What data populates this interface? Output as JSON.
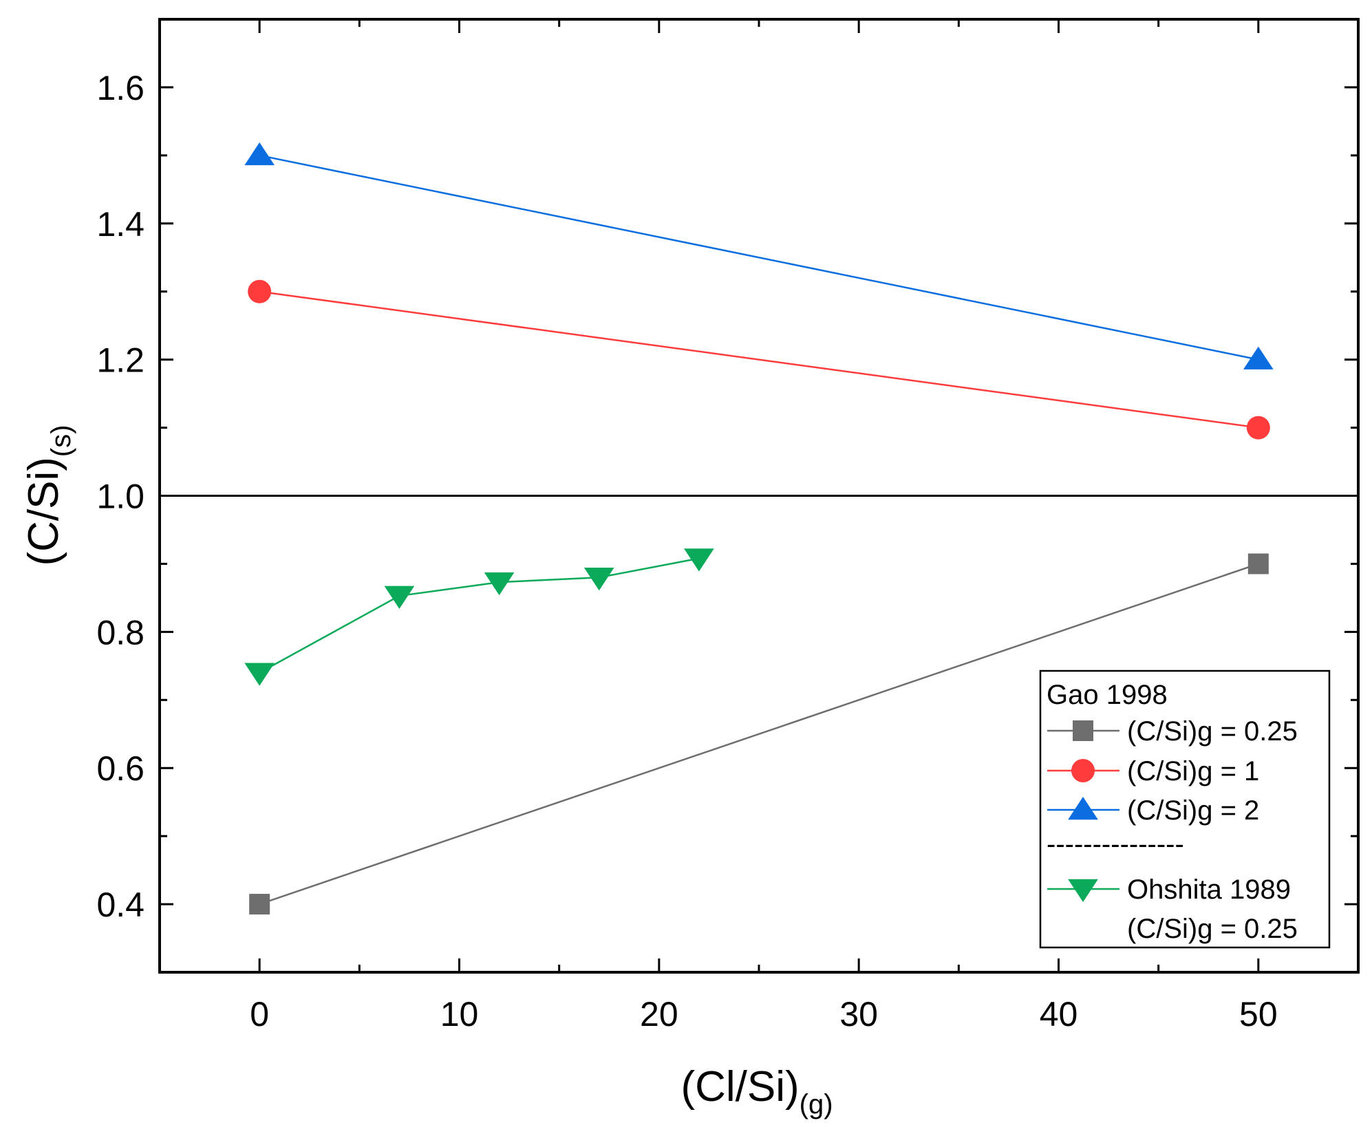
{
  "chart_data": {
    "type": "line",
    "title": "",
    "xlabel": "(Cl/Si)",
    "xlabel_sub": "(g)",
    "ylabel": "(C/Si)",
    "ylabel_sub": "(s)",
    "xlim": [
      -5,
      55
    ],
    "ylim": [
      0.3,
      1.7
    ],
    "xticks": [
      0,
      10,
      20,
      30,
      40,
      50
    ],
    "xtick_labels": [
      "0",
      "10",
      "20",
      "30",
      "40",
      "50"
    ],
    "yticks": [
      0.4,
      0.6,
      0.8,
      1.0,
      1.2,
      1.4,
      1.6
    ],
    "ytick_labels": [
      "0.4",
      "0.6",
      "0.8",
      "1.0",
      "1.2",
      "1.4",
      "1.6"
    ],
    "reference_line_y": 1.0,
    "grid": false,
    "series": [
      {
        "name": "(C/Si)g = 0.25",
        "group": "Gao 1998",
        "color": "#6e6e6e",
        "marker": "square",
        "x": [
          0,
          50
        ],
        "y": [
          0.4,
          0.9
        ]
      },
      {
        "name": "(C/Si)g = 1",
        "group": "Gao 1998",
        "color": "#ff3b3b",
        "marker": "circle",
        "x": [
          0,
          50
        ],
        "y": [
          1.3,
          1.1
        ]
      },
      {
        "name": "(C/Si)g = 2",
        "group": "Gao 1998",
        "color": "#0a6ee0",
        "marker": "triangle-up",
        "x": [
          0,
          50
        ],
        "y": [
          1.5,
          1.2
        ]
      },
      {
        "name": "Ohshita 1989",
        "subname": "(C/Si)g = 0.25",
        "color": "#0aaa5a",
        "marker": "triangle-down",
        "x": [
          0,
          7,
          12,
          17,
          22
        ],
        "y": [
          0.74,
          0.853,
          0.873,
          0.88,
          0.908
        ]
      }
    ],
    "legend": {
      "position": "bottom-right",
      "title": "Gao 1998",
      "separator": "---------------"
    }
  }
}
